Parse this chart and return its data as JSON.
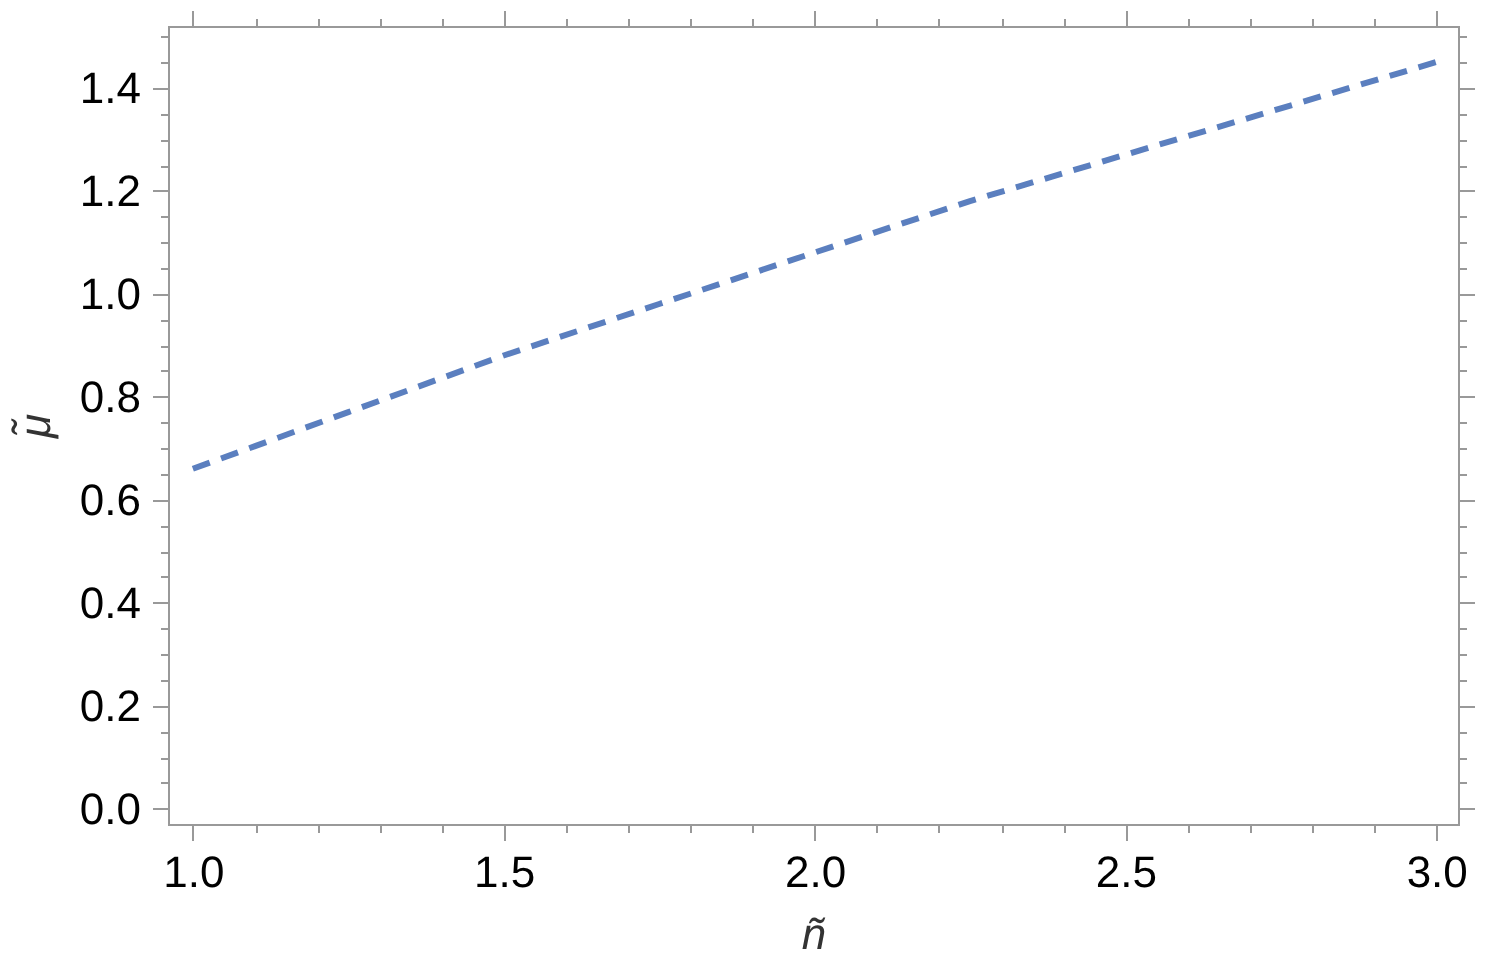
{
  "chart_data": {
    "type": "line",
    "xlabel": "ñ",
    "ylabel": "μ̃",
    "x": [
      1.0,
      1.25,
      1.5,
      1.75,
      2.0,
      2.25,
      2.5,
      2.75,
      3.0
    ],
    "series": [
      {
        "color": "#5b7fbf",
        "values": [
          0.66,
          0.77,
          0.88,
          0.98,
          1.08,
          1.18,
          1.27,
          1.36,
          1.45
        ]
      }
    ],
    "line_style": "dashed",
    "xlim": [
      0.96,
      3.035
    ],
    "ylim": [
      -0.03,
      1.52
    ],
    "xticks": [
      {
        "value": 1,
        "label": "1.0"
      },
      {
        "value": 1.1,
        "label": null
      },
      {
        "value": 1.2,
        "label": null
      },
      {
        "value": 1.3,
        "label": null
      },
      {
        "value": 1.4,
        "label": null
      },
      1.5,
      {
        "value": 1.6,
        "label": null
      },
      {
        "value": 1.7,
        "label": null
      },
      {
        "value": 1.8,
        "label": null
      },
      {
        "value": 1.9,
        "label": null
      },
      {
        "value": 2,
        "label": "2.0"
      },
      {
        "value": 2.1,
        "label": null
      },
      {
        "value": 2.2,
        "label": null
      },
      {
        "value": 2.3,
        "label": null
      },
      {
        "value": 2.4,
        "label": null
      },
      2.5,
      {
        "value": 2.6,
        "label": null
      },
      {
        "value": 2.7,
        "label": null
      },
      {
        "value": 2.8,
        "label": null
      },
      {
        "value": 2.9,
        "label": null
      },
      {
        "value": 3,
        "label": "3.0"
      }
    ],
    "yticks": [
      {
        "value": 0,
        "label": "0.0"
      },
      {
        "value": 0.05,
        "label": null
      },
      {
        "value": 0.1,
        "label": null
      },
      {
        "value": 0.15,
        "label": null
      },
      0.2,
      {
        "value": 0.25,
        "label": null
      },
      {
        "value": 0.3,
        "label": null
      },
      {
        "value": 0.35,
        "label": null
      },
      0.4,
      {
        "value": 0.45,
        "label": null
      },
      {
        "value": 0.5,
        "label": null
      },
      {
        "value": 0.55,
        "label": null
      },
      0.6,
      {
        "value": 0.65,
        "label": null
      },
      {
        "value": 0.7,
        "label": null
      },
      {
        "value": 0.75,
        "label": null
      },
      0.8,
      {
        "value": 0.85,
        "label": null
      },
      {
        "value": 0.9,
        "label": null
      },
      {
        "value": 0.95,
        "label": null
      },
      {
        "value": 1,
        "label": "1.0"
      },
      {
        "value": 1.05,
        "label": null
      },
      {
        "value": 1.1,
        "label": null
      },
      {
        "value": 1.15,
        "label": null
      },
      1.2,
      {
        "value": 1.25,
        "label": null
      },
      {
        "value": 1.3,
        "label": null
      },
      {
        "value": 1.35,
        "label": null
      },
      1.4,
      {
        "value": 1.45,
        "label": null
      },
      {
        "value": 1.5,
        "label": null
      }
    ]
  }
}
